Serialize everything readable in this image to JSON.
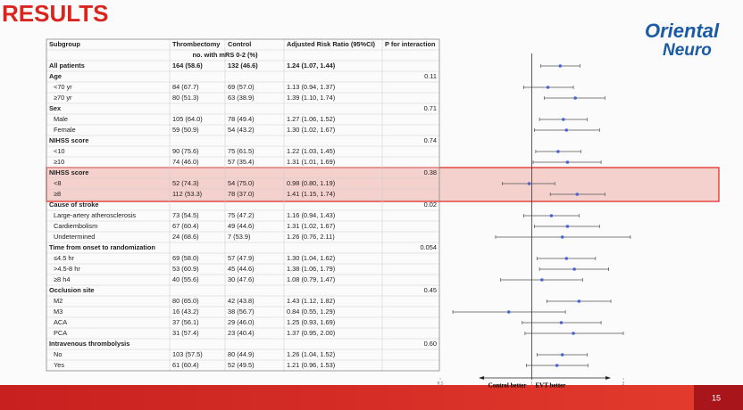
{
  "title": "RESULTS",
  "logo": {
    "line1": "Oriental",
    "line2": "Neuro"
  },
  "page_number": "15",
  "table": {
    "header": [
      "Subgroup",
      "Thrombectomy",
      "Control",
      "Adjusted Risk Ratio (95%CI)",
      "P for interaction"
    ],
    "subheader": "no. with mRS 0-2 (%)",
    "rows": [
      {
        "subgroup": "All patients",
        "evt": "164 (58.6)",
        "control": "132 (46.6)",
        "ratio": "1.24 (1.07, 1.44)",
        "rr": [
          1.24,
          1.07,
          1.44
        ],
        "bold": true
      },
      {
        "subgroup": "Age",
        "p": "0.11",
        "bold": true
      },
      {
        "subgroup": "<70 yr",
        "evt": "84 (67.7)",
        "control": "69 (57.0)",
        "ratio": "1.13 (0.94, 1.37)",
        "rr": [
          1.13,
          0.94,
          1.37
        ]
      },
      {
        "subgroup": "≥70 yr",
        "evt": "80 (51.3)",
        "control": "63 (38.9)",
        "ratio": "1.39 (1.10, 1.74)",
        "rr": [
          1.39,
          1.1,
          1.74
        ]
      },
      {
        "subgroup": "Sex",
        "p": "0.71",
        "bold": true
      },
      {
        "subgroup": "Male",
        "evt": "105 (64.0)",
        "control": "78 (49.4)",
        "ratio": "1.27 (1.06, 1.52)",
        "rr": [
          1.27,
          1.06,
          1.52
        ]
      },
      {
        "subgroup": "Female",
        "evt": "59 (50.9)",
        "control": "54 (43.2)",
        "ratio": "1.30 (1.02, 1.67)",
        "rr": [
          1.3,
          1.02,
          1.67
        ]
      },
      {
        "subgroup": "NIHSS score",
        "p": "0.74",
        "bold": true
      },
      {
        "subgroup": "<10",
        "evt": "90 (75.6)",
        "control": "75 (61.5)",
        "ratio": "1.22 (1.03, 1.45)",
        "rr": [
          1.22,
          1.03,
          1.45
        ]
      },
      {
        "subgroup": "≥10",
        "evt": "74 (46.0)",
        "control": "57 (35.4)",
        "ratio": "1.31 (1.01, 1.69)",
        "rr": [
          1.31,
          1.01,
          1.69
        ]
      },
      {
        "subgroup": "NIHSS score",
        "p": "0.38",
        "bold": true,
        "highlight": true
      },
      {
        "subgroup": "<8",
        "evt": "52 (74.3)",
        "control": "54 (75.0)",
        "ratio": "0.98 (0.80, 1.19)",
        "rr": [
          0.98,
          0.8,
          1.19
        ],
        "highlight": true
      },
      {
        "subgroup": "≥8",
        "evt": "112 (53.3)",
        "control": "78 (37.0)",
        "ratio": "1.41 (1.15, 1.74)",
        "rr": [
          1.41,
          1.15,
          1.74
        ],
        "highlight": true
      },
      {
        "subgroup": "Cause of stroke",
        "p": "0.02",
        "bold": true
      },
      {
        "subgroup": "Large-artery atherosclerosis",
        "evt": "73 (54.5)",
        "control": "75 (47.2)",
        "ratio": "1.16 (0.94, 1.43)",
        "rr": [
          1.16,
          0.94,
          1.43
        ]
      },
      {
        "subgroup": "Cardiembolism",
        "evt": "67 (60.4)",
        "control": "49 (44.6)",
        "ratio": "1.31 (1.02, 1.67)",
        "rr": [
          1.31,
          1.02,
          1.67
        ]
      },
      {
        "subgroup": "Undetermined",
        "evt": "24 (68.6)",
        "control": "7 (53.9)",
        "ratio": "1.26 (0.76, 2.11)",
        "rr": [
          1.26,
          0.76,
          2.11
        ]
      },
      {
        "subgroup": "Time from onset to randomization",
        "p": "0.054",
        "bold": true
      },
      {
        "subgroup": "≤4.5 hr",
        "evt": "69 (58.0)",
        "control": "57 (47.9)",
        "ratio": "1.30 (1.04, 1.62)",
        "rr": [
          1.3,
          1.04,
          1.62
        ]
      },
      {
        "subgroup": ">4.5-8 hr",
        "evt": "53 (60.9)",
        "control": "45 (44.6)",
        "ratio": "1.38 (1.06, 1.79)",
        "rr": [
          1.38,
          1.06,
          1.79
        ]
      },
      {
        "subgroup": "≥8 h4",
        "evt": "40 (55.6)",
        "control": "30 (47.6)",
        "ratio": "1.08 (0.79, 1.47)",
        "rr": [
          1.08,
          0.79,
          1.47
        ]
      },
      {
        "subgroup": "Occlusion site",
        "p": "0.45",
        "bold": true
      },
      {
        "subgroup": "M2",
        "evt": "80 (65.0)",
        "control": "42 (43.8)",
        "ratio": "1.43 (1.12, 1.82)",
        "rr": [
          1.43,
          1.12,
          1.82
        ]
      },
      {
        "subgroup": "M3",
        "evt": "16 (43.2)",
        "control": "38 (56.7)",
        "ratio": "0.84 (0.55, 1.29)",
        "rr": [
          0.84,
          0.55,
          1.29
        ]
      },
      {
        "subgroup": "ACA",
        "evt": "37 (56.1)",
        "control": "29 (46.0)",
        "ratio": "1.25 (0.93, 1.69)",
        "rr": [
          1.25,
          0.93,
          1.69
        ]
      },
      {
        "subgroup": "PCA",
        "evt": "31 (57.4)",
        "control": "23 (40.4)",
        "ratio": "1.37 (0.95, 2.00)",
        "rr": [
          1.37,
          0.95,
          2.0
        ]
      },
      {
        "subgroup": "Intravenous thrombolysis",
        "p": "0.60",
        "bold": true
      },
      {
        "subgroup": "No",
        "evt": "103 (57.5)",
        "control": "80 (44.9)",
        "ratio": "1.26 (1.04, 1.52)",
        "rr": [
          1.26,
          1.04,
          1.52
        ]
      },
      {
        "subgroup": "Yes",
        "evt": "61 (60.4)",
        "control": "52 (49.5)",
        "ratio": "1.21 (0.96, 1.53)",
        "rr": [
          1.21,
          0.96,
          1.53
        ]
      }
    ]
  },
  "forest": {
    "xlim": [
      0.5,
      2
    ],
    "xticks": [
      0.5,
      1,
      2
    ],
    "log": true,
    "left_label": "Control better",
    "right_label": "EVT better",
    "color": "#4a63d6"
  }
}
